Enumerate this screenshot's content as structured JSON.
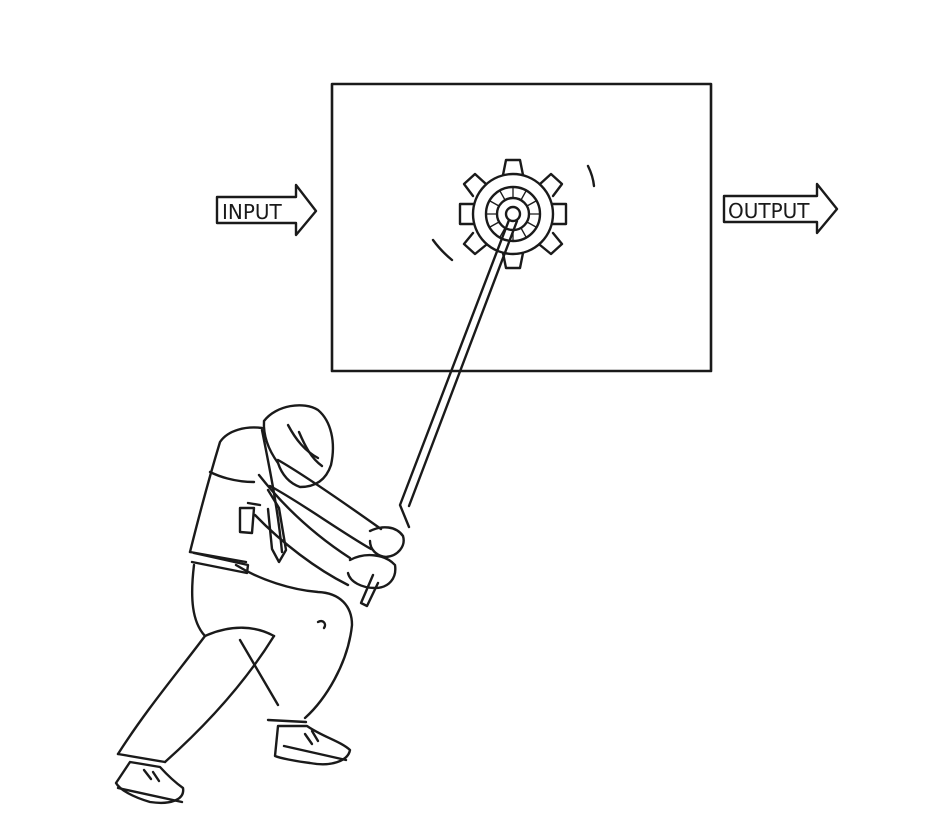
{
  "labels": {
    "input": "INPUT",
    "output": "OUTPUT"
  },
  "ink_color": "#1a1a1a",
  "background_color": "#ffffff"
}
